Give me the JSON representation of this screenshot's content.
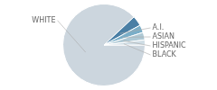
{
  "chart_data": {
    "type": "pie",
    "categories": [
      "WHITE",
      "A.I.",
      "ASIAN",
      "HISPANIC",
      "BLACK"
    ],
    "values": [
      88,
      4,
      3,
      3,
      2
    ],
    "colors": [
      "#ccd6de",
      "#4a7fa5",
      "#7aaec8",
      "#afc9d5",
      "#cfdde5"
    ]
  }
}
